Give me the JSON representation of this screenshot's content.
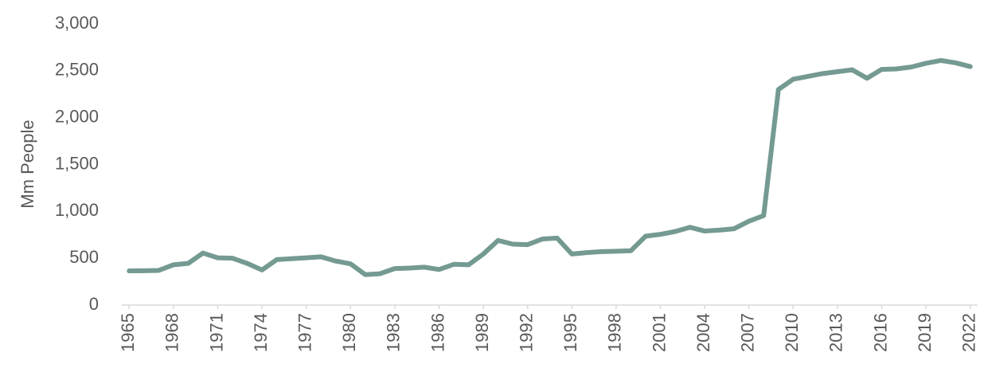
{
  "chart_data": {
    "type": "line",
    "y_label": "Mm People",
    "color": "#749a92",
    "x": [
      1965,
      1966,
      1967,
      1968,
      1969,
      1970,
      1971,
      1972,
      1973,
      1974,
      1975,
      1976,
      1977,
      1978,
      1979,
      1980,
      1981,
      1982,
      1983,
      1984,
      1985,
      1986,
      1987,
      1988,
      1989,
      1990,
      1991,
      1992,
      1993,
      1994,
      1995,
      1996,
      1997,
      1998,
      1999,
      2000,
      2001,
      2002,
      2003,
      2004,
      2005,
      2006,
      2007,
      2008,
      2009,
      2010,
      2011,
      2012,
      2013,
      2014,
      2015,
      2016,
      2017,
      2018,
      2019,
      2020,
      2021,
      2022
    ],
    "values": [
      365,
      367,
      370,
      430,
      445,
      555,
      505,
      500,
      445,
      375,
      485,
      495,
      505,
      515,
      470,
      440,
      325,
      335,
      390,
      395,
      405,
      380,
      435,
      430,
      545,
      690,
      650,
      645,
      705,
      715,
      545,
      560,
      570,
      575,
      580,
      735,
      755,
      785,
      830,
      790,
      800,
      815,
      895,
      955,
      2300,
      2410,
      2440,
      2470,
      2490,
      2510,
      2420,
      2515,
      2520,
      2540,
      2580,
      2610,
      2585,
      2545
    ],
    "xlim": [
      1964.5,
      2022.5
    ],
    "xticks": [
      1965,
      1968,
      1971,
      1974,
      1977,
      1980,
      1983,
      1986,
      1989,
      1992,
      1995,
      1998,
      2001,
      2004,
      2007,
      2010,
      2013,
      2016,
      2019,
      2022
    ],
    "ylim": [
      0,
      3000
    ],
    "yticks": [
      0,
      500,
      {
        "value": 1000,
        "label": "1,000"
      },
      {
        "value": 1500,
        "label": "1,500"
      },
      {
        "value": 2000,
        "label": "2,000"
      },
      {
        "value": 2500,
        "label": "2,500"
      },
      {
        "value": 3000,
        "label": "3,000"
      }
    ]
  }
}
